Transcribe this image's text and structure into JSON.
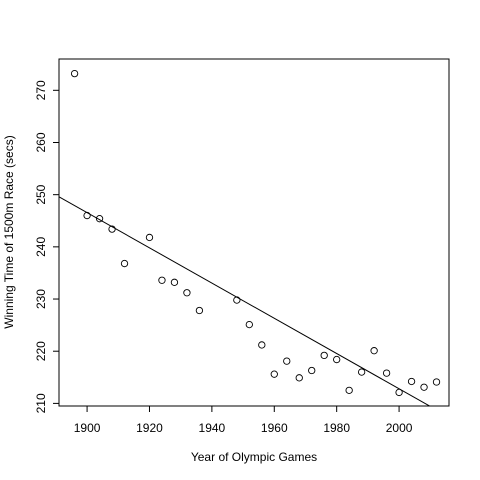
{
  "chart_data": {
    "type": "scatter",
    "title": "",
    "xlabel": "Year of Olympic Games",
    "ylabel": "Winning Time of 1500m Race (secs)",
    "xlim": [
      1891,
      2016
    ],
    "ylim": [
      209.5,
      276
    ],
    "xticks": [
      1900,
      1920,
      1940,
      1960,
      1980,
      2000
    ],
    "yticks": [
      210,
      220,
      230,
      240,
      250,
      260,
      270
    ],
    "grid": false,
    "legend": "none",
    "points": [
      {
        "x": 1896,
        "y": 273.2
      },
      {
        "x": 1900,
        "y": 246.0
      },
      {
        "x": 1904,
        "y": 245.4
      },
      {
        "x": 1908,
        "y": 243.4
      },
      {
        "x": 1912,
        "y": 236.8
      },
      {
        "x": 1920,
        "y": 241.8
      },
      {
        "x": 1924,
        "y": 233.6
      },
      {
        "x": 1928,
        "y": 233.2
      },
      {
        "x": 1932,
        "y": 231.2
      },
      {
        "x": 1936,
        "y": 227.8
      },
      {
        "x": 1948,
        "y": 229.8
      },
      {
        "x": 1952,
        "y": 225.1
      },
      {
        "x": 1956,
        "y": 221.2
      },
      {
        "x": 1960,
        "y": 215.6
      },
      {
        "x": 1964,
        "y": 218.1
      },
      {
        "x": 1968,
        "y": 214.9
      },
      {
        "x": 1972,
        "y": 216.3
      },
      {
        "x": 1976,
        "y": 219.2
      },
      {
        "x": 1980,
        "y": 218.4
      },
      {
        "x": 1984,
        "y": 212.5
      },
      {
        "x": 1988,
        "y": 216.0
      },
      {
        "x": 1992,
        "y": 220.1
      },
      {
        "x": 1996,
        "y": 215.8
      },
      {
        "x": 2000,
        "y": 212.1
      },
      {
        "x": 2004,
        "y": 214.2
      },
      {
        "x": 2008,
        "y": 213.1
      },
      {
        "x": 2012,
        "y": 214.1
      }
    ],
    "fit_line": {
      "x": [
        1891,
        2016
      ],
      "y": [
        249.6,
        207.4
      ]
    }
  }
}
